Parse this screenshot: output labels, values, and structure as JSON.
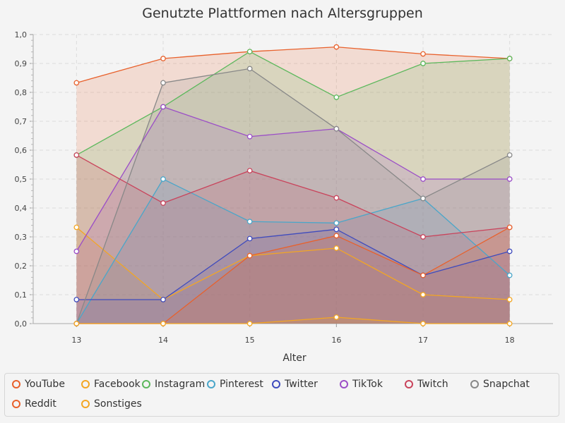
{
  "chart_data": {
    "type": "area",
    "title": "Genutzte Plattformen nach Altersgruppen",
    "xlabel": "Alter",
    "ylabel": "",
    "x": [
      13,
      14,
      15,
      16,
      17,
      18
    ],
    "xlim": [
      12.5,
      18.5
    ],
    "ylim": [
      0,
      1
    ],
    "yticks": [
      "0,0",
      "0,1",
      "0,2",
      "0,3",
      "0,4",
      "0,5",
      "0,6",
      "0,7",
      "0,8",
      "0,9",
      "1,0"
    ],
    "xticks": [
      "13",
      "14",
      "15",
      "16",
      "17",
      "18"
    ],
    "grid": true,
    "legend": "bottom",
    "series": [
      {
        "name": "YouTube",
        "color": "#e8612c",
        "values": [
          0.833,
          0.917,
          0.941,
          0.957,
          0.933,
          0.917
        ]
      },
      {
        "name": "Facebook",
        "color": "#f3a623",
        "values": [
          0.333,
          0.083,
          0.235,
          0.261,
          0.1,
          0.083
        ]
      },
      {
        "name": "Instagram",
        "color": "#5cb85c",
        "values": [
          0.583,
          0.75,
          0.941,
          0.783,
          0.9,
          0.917
        ]
      },
      {
        "name": "Pinterest",
        "color": "#4aa6c9",
        "values": [
          0.0,
          0.5,
          0.353,
          0.348,
          0.433,
          0.167
        ]
      },
      {
        "name": "Twitter",
        "color": "#3f4bbd",
        "values": [
          0.083,
          0.083,
          0.294,
          0.326,
          0.167,
          0.25
        ]
      },
      {
        "name": "TikTok",
        "color": "#9b4ec7",
        "values": [
          0.25,
          0.75,
          0.647,
          0.674,
          0.5,
          0.5
        ]
      },
      {
        "name": "Twitch",
        "color": "#c9435b",
        "values": [
          0.583,
          0.417,
          0.529,
          0.435,
          0.3,
          0.333
        ]
      },
      {
        "name": "Snapchat",
        "color": "#888888",
        "values": [
          0.0,
          0.833,
          0.882,
          0.674,
          0.433,
          0.583
        ]
      },
      {
        "name": "Reddit",
        "color": "#e8612c",
        "values": [
          0.0,
          0.0,
          0.235,
          0.304,
          0.167,
          0.333
        ]
      },
      {
        "name": "Sonstiges",
        "color": "#f3a623",
        "values": [
          0.0,
          0.0,
          0.0,
          0.022,
          0.0,
          0.0
        ]
      }
    ]
  }
}
